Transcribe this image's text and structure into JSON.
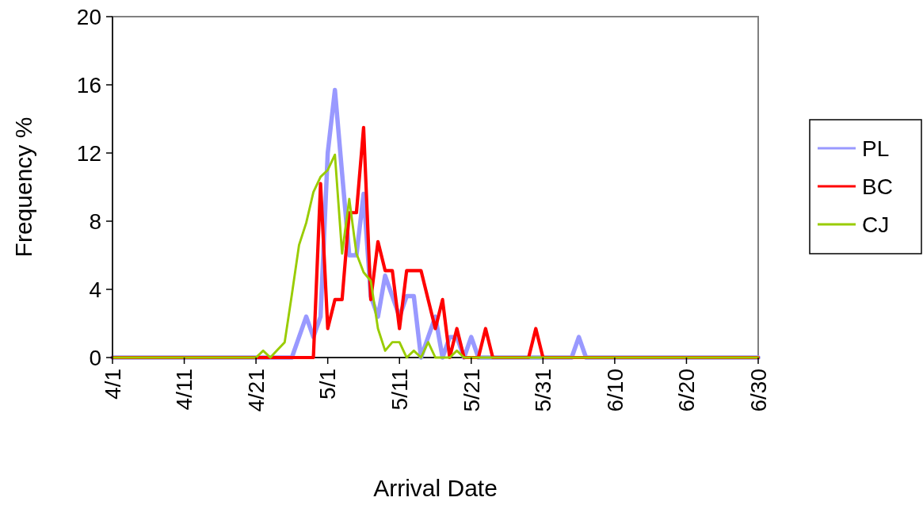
{
  "chart_data": {
    "type": "line",
    "xlabel": "Arrival Date",
    "ylabel": "Frequency %",
    "x": [
      "--04-01",
      "--04-21",
      "--04-22",
      "--04-23",
      "--04-24",
      "--04-25",
      "--04-26",
      "--04-27",
      "--04-28",
      "--04-29",
      "--04-30",
      "--05-01",
      "--05-02",
      "--05-03",
      "--05-04",
      "--05-05",
      "--05-06",
      "--05-07",
      "--05-08",
      "--05-09",
      "--05-10",
      "--05-11",
      "--05-12",
      "--05-13",
      "--05-14",
      "--05-15",
      "--05-16",
      "--05-17",
      "--05-18",
      "--05-19",
      "--05-20",
      "--05-21",
      "--05-22",
      "--05-23",
      "--05-24",
      "--05-25",
      "--05-26",
      "--05-27",
      "--05-28",
      "--05-29",
      "--05-30",
      "--05-31",
      "--06-01",
      "--06-02",
      "--06-03",
      "--06-04",
      "--06-05",
      "--06-06",
      "--06-30"
    ],
    "series": [
      {
        "name": "PL",
        "color": "#9999ff",
        "values": [
          0,
          0,
          0,
          0,
          0,
          0,
          0,
          1.2,
          2.4,
          1.2,
          2.4,
          12,
          15.7,
          10.8,
          6,
          6,
          9.6,
          3.6,
          2.4,
          4.8,
          3.6,
          2.4,
          3.6,
          3.6,
          0,
          1.2,
          2.4,
          0,
          1.2,
          1.2,
          0,
          1.2,
          0,
          0,
          0,
          0,
          0,
          0,
          0,
          0,
          0,
          0,
          0,
          0,
          0,
          0,
          1.2,
          0,
          0
        ]
      },
      {
        "name": "BC",
        "color": "#ff0000",
        "x": [
          "--04-01",
          "--04-21",
          "--04-22",
          "--04-23",
          "--04-24",
          "--04-25",
          "--04-26",
          "--04-27",
          "--04-28",
          "--04-29",
          "--04-30",
          "--05-01",
          "--05-02",
          "--05-03",
          "--05-04",
          "--05-05",
          "--05-06",
          "--05-07",
          "--05-08",
          "--05-09",
          "--05-10",
          "--05-11",
          "--05-12",
          "--05-13",
          "--05-14",
          "--05-15",
          "--05-16",
          "--05-17",
          "--05-18",
          "--05-19",
          "--05-20",
          "--05-21",
          "--05-22",
          "--05-23",
          "--05-24",
          "--05-25",
          "--05-26",
          "--05-27",
          "--05-28",
          "--05-29",
          "--05-30",
          "--05-31",
          "--06-01",
          "--06-30"
        ],
        "values": [
          0,
          0,
          0,
          0,
          0,
          0,
          0,
          0,
          0,
          0,
          10.2,
          1.7,
          3.4,
          3.4,
          8.5,
          8.5,
          13.5,
          3.4,
          6.8,
          5.1,
          5.1,
          1.7,
          5.1,
          5.1,
          5.1,
          3.4,
          1.7,
          3.4,
          0,
          1.7,
          0,
          0,
          0,
          1.7,
          0,
          0,
          0,
          0,
          0,
          0,
          1.7,
          0,
          0,
          0
        ]
      },
      {
        "name": "CJ",
        "color": "#99cc00",
        "values": [
          0,
          0,
          0.4,
          0,
          0.45,
          0.9,
          3.7,
          6.6,
          7.9,
          9.7,
          10.6,
          11,
          11.9,
          6.1,
          9.3,
          6.1,
          5,
          4.5,
          1.7,
          0.4,
          0.9,
          0.9,
          0,
          0.4,
          0,
          0.9,
          0,
          0,
          0,
          0.4,
          0,
          0,
          0,
          0,
          0,
          0,
          0,
          0,
          0,
          0,
          0,
          0,
          0,
          0,
          0,
          0,
          0,
          0,
          0
        ]
      }
    ],
    "xlim": [
      "--04-01",
      "--06-30"
    ],
    "xticks": [
      {
        "value": "--04-01",
        "label": "4/1"
      },
      {
        "value": "--04-11",
        "label": "4/11"
      },
      {
        "value": "--04-21",
        "label": "4/21"
      },
      {
        "value": "--05-01",
        "label": "5/1"
      },
      {
        "value": "--05-11",
        "label": "5/11"
      },
      {
        "value": "--05-21",
        "label": "5/21"
      },
      {
        "value": "--05-31",
        "label": "5/31"
      },
      {
        "value": "--06-10",
        "label": "6/10"
      },
      {
        "value": "--06-20",
        "label": "6/20"
      },
      {
        "value": "--06-30",
        "label": "6/30"
      }
    ],
    "ylim": [
      0,
      20
    ],
    "yticks": [
      0,
      4,
      8,
      12,
      16,
      20
    ],
    "legend": "right"
  }
}
